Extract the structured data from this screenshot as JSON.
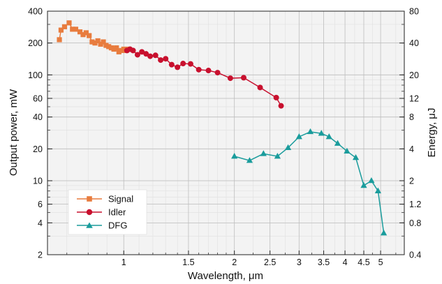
{
  "chart_data": {
    "type": "line",
    "x_scale": "log",
    "y_scale": "log",
    "xlabel": "Wavelength, μm",
    "ylabel": "Output power, mW",
    "y2label": "Energy, μJ",
    "xlim": [
      0.62,
      5.8
    ],
    "ylim": [
      2,
      400
    ],
    "y2lim": [
      0.4,
      80
    ],
    "x_ticks": [
      1,
      1.5,
      2,
      2.5,
      3,
      3.5,
      4,
      4.5,
      5
    ],
    "x_tick_labels": [
      "1",
      "1.5",
      "2",
      "2.5",
      "3",
      "3.5",
      "4",
      "4.5",
      "5"
    ],
    "y_ticks": [
      2,
      4,
      6,
      10,
      20,
      40,
      60,
      100,
      200,
      400
    ],
    "y_tick_labels": [
      "2",
      "4",
      "6",
      "10",
      "20",
      "40",
      "60",
      "100",
      "200",
      "400"
    ],
    "y2_ticks": [
      0.4,
      0.8,
      1.2,
      2,
      4,
      8,
      12,
      20,
      40,
      80
    ],
    "y2_tick_labels": [
      "0.4",
      "0.8",
      "1.2",
      "2",
      "4",
      "8",
      "12",
      "20",
      "40",
      "80"
    ],
    "grid": true,
    "legend_position": "bottom-left",
    "series": [
      {
        "name": "Signal",
        "color": "#e87c3e",
        "marker": "square",
        "x": [
          0.668,
          0.675,
          0.69,
          0.71,
          0.725,
          0.74,
          0.76,
          0.775,
          0.79,
          0.805,
          0.82,
          0.835,
          0.85,
          0.865,
          0.88,
          0.895,
          0.91,
          0.925,
          0.94,
          0.955,
          0.97,
          0.985,
          1.0,
          1.015,
          1.03
        ],
        "y": [
          215,
          265,
          285,
          310,
          270,
          270,
          255,
          240,
          250,
          235,
          205,
          200,
          210,
          195,
          205,
          190,
          185,
          180,
          175,
          180,
          165,
          170,
          175,
          170,
          175
        ]
      },
      {
        "name": "Idler",
        "color": "#c8102e",
        "marker": "circle",
        "x": [
          1.02,
          1.04,
          1.06,
          1.09,
          1.12,
          1.15,
          1.18,
          1.22,
          1.26,
          1.3,
          1.35,
          1.4,
          1.45,
          1.52,
          1.6,
          1.7,
          1.8,
          1.95,
          2.12,
          2.35,
          2.6,
          2.68
        ],
        "y": [
          170,
          175,
          170,
          155,
          165,
          158,
          150,
          153,
          138,
          142,
          125,
          118,
          128,
          127,
          112,
          110,
          105,
          93,
          94,
          76,
          61,
          51
        ]
      },
      {
        "name": "DFG",
        "color": "#1a9c9c",
        "marker": "triangle",
        "x": [
          2.0,
          2.2,
          2.4,
          2.62,
          2.8,
          3.0,
          3.22,
          3.45,
          3.62,
          3.82,
          4.05,
          4.28,
          4.5,
          4.72,
          4.92,
          5.1
        ],
        "y": [
          17,
          15.5,
          18,
          17,
          20.5,
          26,
          29,
          28,
          26,
          22.5,
          19,
          16.5,
          9,
          10,
          8,
          3.2
        ]
      }
    ]
  }
}
